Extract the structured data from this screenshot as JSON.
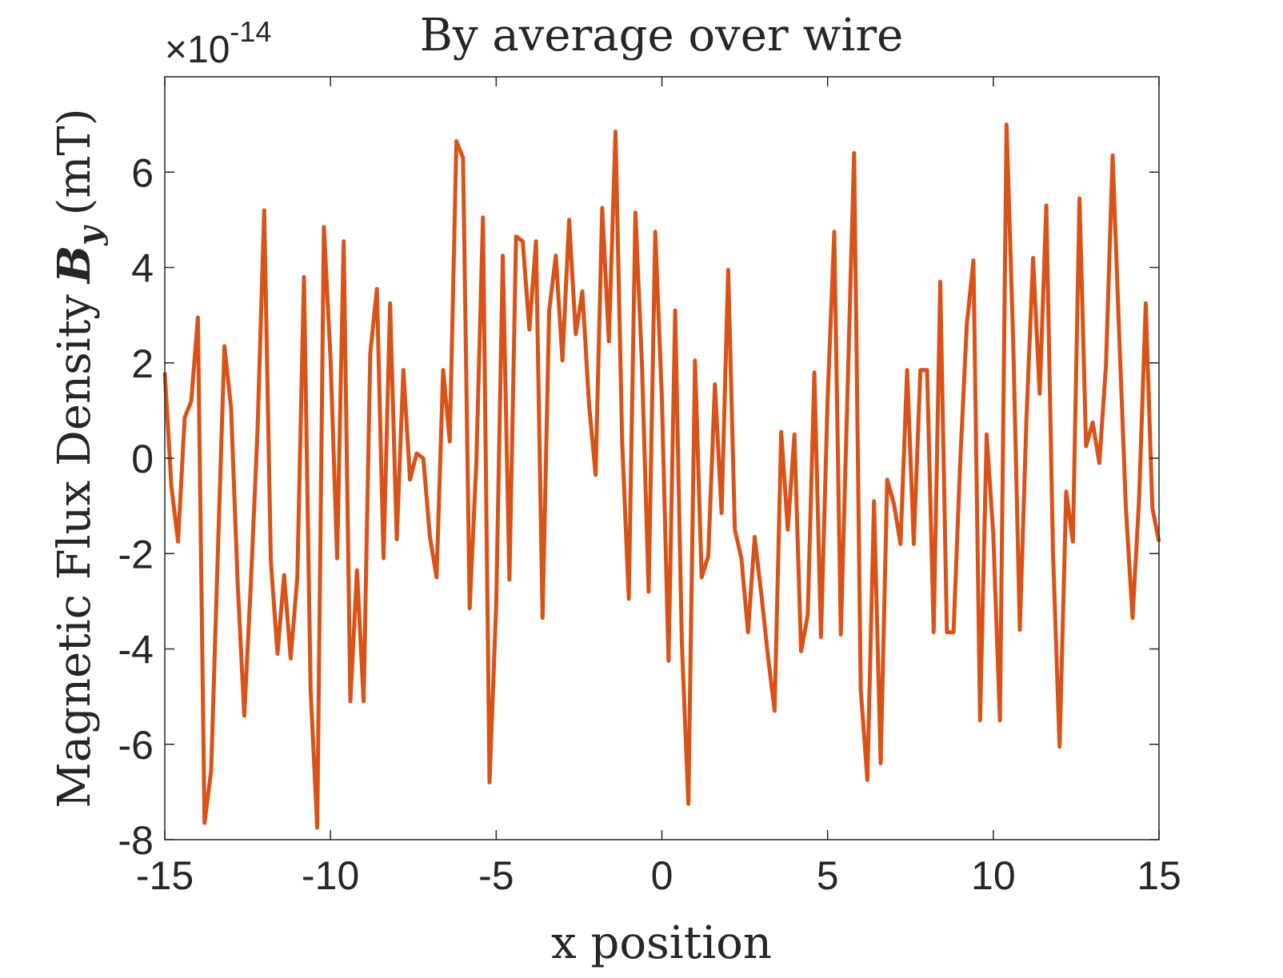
{
  "chart_data": {
    "type": "line",
    "title": "By average over wire",
    "xlabel": "x position",
    "ylabel_prefix": "Magnetic Flux Density",
    "ylabel_symbol_main": "B",
    "ylabel_symbol_sub": "y",
    "ylabel_unit": "(mT)",
    "y_exponent_label": {
      "prefix": "×10",
      "power": "-14"
    },
    "xlim": [
      -15,
      15
    ],
    "ylim": [
      -8,
      8
    ],
    "y_scale_factor": 1e-14,
    "xticks": [
      -15,
      -10,
      -5,
      0,
      5,
      10,
      15
    ],
    "yticks": [
      -8,
      -6,
      -4,
      -2,
      0,
      2,
      4,
      6
    ],
    "xtick_labels": [
      "-15",
      "-10",
      "-5",
      "0",
      "5",
      "10",
      "15"
    ],
    "ytick_labels": [
      "-8",
      "-6",
      "-4",
      "-2",
      "0",
      "2",
      "4",
      "6"
    ],
    "grid": false,
    "line_color": "#d95319",
    "series": [
      {
        "x": [
          -15.0,
          -14.8,
          -14.6,
          -14.4,
          -14.2,
          -14.0,
          -13.8,
          -13.6,
          -13.4,
          -13.2,
          -13.0,
          -12.8,
          -12.6,
          -12.4,
          -12.2,
          -12.0,
          -11.8,
          -11.6,
          -11.4,
          -11.2,
          -11.0,
          -10.8,
          -10.6,
          -10.4,
          -10.2,
          -10.0,
          -9.8,
          -9.6,
          -9.4,
          -9.2,
          -9.0,
          -8.8,
          -8.6,
          -8.4,
          -8.2,
          -8.0,
          -7.8,
          -7.6,
          -7.4,
          -7.2,
          -7.0,
          -6.8,
          -6.6,
          -6.4,
          -6.2,
          -6.0,
          -5.8,
          -5.6,
          -5.4,
          -5.2,
          -5.0,
          -4.8,
          -4.6,
          -4.4,
          -4.2,
          -4.0,
          -3.8,
          -3.6,
          -3.4,
          -3.2,
          -3.0,
          -2.8,
          -2.6,
          -2.4,
          -2.2,
          -2.0,
          -1.8,
          -1.6,
          -1.4,
          -1.2,
          -1.0,
          -0.8,
          -0.6,
          -0.4,
          -0.2,
          0.0,
          0.2,
          0.4,
          0.6,
          0.8,
          1.0,
          1.2,
          1.4,
          1.6,
          1.8,
          2.0,
          2.2,
          2.4,
          2.6,
          2.8,
          3.0,
          3.2,
          3.4,
          3.6,
          3.8,
          4.0,
          4.2,
          4.4,
          4.6,
          4.8,
          5.0,
          5.2,
          5.4,
          5.6,
          5.8,
          6.0,
          6.2,
          6.4,
          6.6,
          6.8,
          7.0,
          7.2,
          7.4,
          7.6,
          7.8,
          8.0,
          8.2,
          8.4,
          8.6,
          8.8,
          9.0,
          9.2,
          9.4,
          9.6,
          9.8,
          10.0,
          10.2,
          10.4,
          10.6,
          10.8,
          11.0,
          11.2,
          11.4,
          11.6,
          11.8,
          12.0,
          12.2,
          12.4,
          12.6,
          12.8,
          13.0,
          13.2,
          13.4,
          13.6,
          13.8,
          14.0,
          14.2,
          14.4,
          14.6,
          14.8,
          15.0
        ],
        "y": [
          1.8,
          -0.6,
          -1.75,
          0.85,
          1.2,
          2.95,
          -7.65,
          -6.55,
          -2.0,
          2.35,
          1.05,
          -2.65,
          -5.4,
          -2.6,
          0.6,
          5.2,
          -2.15,
          -4.1,
          -2.45,
          -4.2,
          -2.5,
          3.8,
          -4.85,
          -7.75,
          4.85,
          2.1,
          -2.1,
          4.55,
          -5.1,
          -2.35,
          -5.1,
          2.2,
          3.55,
          -2.1,
          3.25,
          -1.7,
          1.85,
          -0.45,
          0.1,
          0.0,
          -1.65,
          -2.5,
          1.85,
          0.35,
          6.65,
          6.3,
          -3.15,
          -0.1,
          5.05,
          -6.8,
          -3.1,
          4.25,
          -2.55,
          4.65,
          4.55,
          2.7,
          4.55,
          -3.35,
          3.1,
          4.25,
          2.05,
          5.0,
          2.6,
          3.5,
          1.15,
          -0.35,
          5.25,
          2.45,
          6.85,
          0.35,
          -2.95,
          5.15,
          1.95,
          -2.8,
          4.75,
          1.25,
          -4.25,
          3.1,
          -3.85,
          -7.25,
          2.05,
          -2.5,
          -2.05,
          1.55,
          -1.15,
          3.95,
          -1.5,
          -2.1,
          -3.65,
          -1.65,
          -2.85,
          -4.15,
          -5.3,
          0.55,
          -1.5,
          0.5,
          -4.05,
          -3.3,
          1.8,
          -3.75,
          1.25,
          4.75,
          -3.7,
          1.35,
          6.4,
          -4.85,
          -6.75,
          -0.9,
          -6.4,
          -0.45,
          -0.95,
          -1.8,
          1.85,
          -1.8,
          1.85,
          1.85,
          -3.65,
          3.7,
          -3.65,
          -3.65,
          -0.1,
          2.8,
          4.15,
          -5.5,
          0.5,
          -1.6,
          -5.5,
          7.0,
          2.45,
          -3.6,
          0.85,
          4.2,
          1.35,
          5.3,
          -1.95,
          -6.05,
          -0.7,
          -1.75,
          5.45,
          0.25,
          0.75,
          -0.1,
          1.95,
          6.35,
          2.55,
          -1.05,
          -3.35,
          -0.85,
          3.25,
          -1.05,
          -1.75
        ]
      }
    ]
  }
}
